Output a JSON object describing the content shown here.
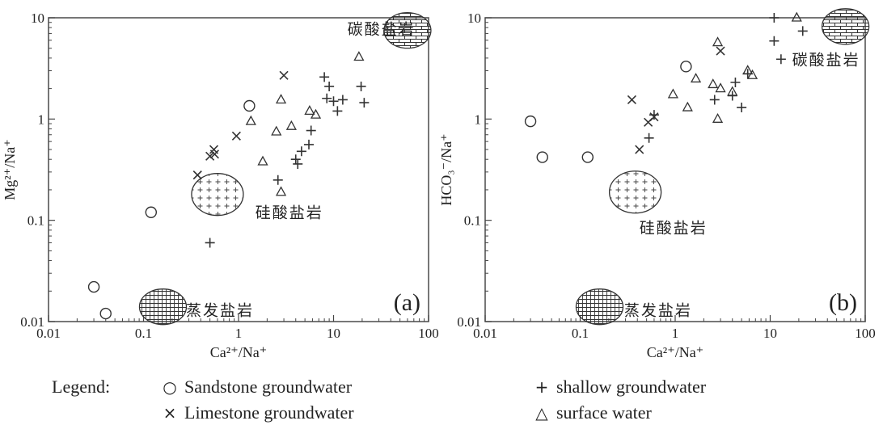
{
  "chart_data": [
    {
      "type": "scatter",
      "panel_label": "(a)",
      "xlabel": "Ca²⁺/Na⁺",
      "ylabel": "Mg²⁺/Na⁺",
      "xscale": "log",
      "yscale": "log",
      "xlim": [
        0.01,
        100
      ],
      "ylim": [
        0.01,
        10
      ],
      "xticks": [
        "0.01",
        "0.1",
        "1",
        "10",
        "100"
      ],
      "yticks": [
        "0.01",
        "0.1",
        "1",
        "10"
      ],
      "grid": false,
      "series": [
        {
          "name": "Sandstone groundwater",
          "marker": "circle",
          "points": [
            [
              0.03,
              0.022
            ],
            [
              0.04,
              0.012
            ],
            [
              0.12,
              0.12
            ],
            [
              1.3,
              1.35
            ]
          ]
        },
        {
          "name": "Limestone groundwater",
          "marker": "x",
          "points": [
            [
              0.37,
              0.28
            ],
            [
              0.5,
              0.43
            ],
            [
              0.55,
              0.5
            ],
            [
              0.56,
              0.45
            ],
            [
              0.95,
              0.68
            ],
            [
              3.0,
              2.7
            ]
          ]
        },
        {
          "name": "shallow groundwater",
          "marker": "plus",
          "points": [
            [
              0.5,
              0.06
            ],
            [
              2.6,
              0.25
            ],
            [
              4.0,
              0.4
            ],
            [
              4.2,
              0.36
            ],
            [
              4.6,
              0.48
            ],
            [
              5.5,
              0.56
            ],
            [
              5.8,
              0.77
            ],
            [
              8.0,
              2.6
            ],
            [
              8.5,
              1.6
            ],
            [
              9.0,
              2.1
            ],
            [
              10.0,
              1.5
            ],
            [
              11.0,
              1.2
            ],
            [
              12.5,
              1.55
            ],
            [
              19.5,
              2.1
            ],
            [
              21.0,
              1.45
            ]
          ]
        },
        {
          "name": "surface water",
          "marker": "triangle",
          "points": [
            [
              1.35,
              0.95
            ],
            [
              1.8,
              0.38
            ],
            [
              2.5,
              0.75
            ],
            [
              2.8,
              0.19
            ],
            [
              2.8,
              1.55
            ],
            [
              3.6,
              0.85
            ],
            [
              5.6,
              1.2
            ],
            [
              6.5,
              1.1
            ],
            [
              18.5,
              4.1
            ]
          ]
        }
      ],
      "regions": [
        {
          "label": "碳酸盐岩",
          "pattern": "brick",
          "at": [
            60,
            7.5
          ],
          "label_at": [
            14,
            7.8
          ]
        },
        {
          "label": "硅酸盐岩",
          "pattern": "plus",
          "at": [
            0.6,
            0.18
          ],
          "label_at": [
            1.5,
            0.12
          ]
        },
        {
          "label": "蒸发盐岩",
          "pattern": "grid",
          "at": [
            0.16,
            0.014
          ],
          "label_at": [
            0.28,
            0.013
          ]
        }
      ]
    },
    {
      "type": "scatter",
      "panel_label": "(b)",
      "xlabel": "Ca²⁺/Na⁺",
      "ylabel": "HCO₃⁻/Na⁺",
      "xscale": "log",
      "yscale": "log",
      "xlim": [
        0.01,
        100
      ],
      "ylim": [
        0.01,
        10
      ],
      "xticks": [
        "0.01",
        "0.1",
        "1",
        "10",
        "100"
      ],
      "yticks": [
        "0.01",
        "0.1",
        "1",
        "10"
      ],
      "grid": false,
      "series": [
        {
          "name": "Sandstone groundwater",
          "marker": "circle",
          "points": [
            [
              0.03,
              0.95
            ],
            [
              0.04,
              0.42
            ],
            [
              0.12,
              0.42
            ],
            [
              1.3,
              3.3
            ]
          ]
        },
        {
          "name": "Limestone groundwater",
          "marker": "x",
          "points": [
            [
              0.35,
              1.55
            ],
            [
              0.42,
              0.5
            ],
            [
              0.52,
              0.93
            ],
            [
              0.6,
              1.05
            ],
            [
              3.0,
              4.7
            ]
          ]
        },
        {
          "name": "shallow groundwater",
          "marker": "plus",
          "points": [
            [
              0.53,
              0.65
            ],
            [
              0.6,
              1.1
            ],
            [
              2.6,
              1.55
            ],
            [
              4.0,
              1.7
            ],
            [
              4.3,
              2.3
            ],
            [
              5.0,
              1.3
            ],
            [
              5.8,
              2.8
            ],
            [
              11.0,
              10.0
            ],
            [
              11.0,
              5.9
            ],
            [
              13.0,
              3.9
            ],
            [
              22.0,
              7.4
            ]
          ]
        },
        {
          "name": "surface water",
          "marker": "triangle",
          "points": [
            [
              0.95,
              1.75
            ],
            [
              1.35,
              1.3
            ],
            [
              1.65,
              2.5
            ],
            [
              2.5,
              2.2
            ],
            [
              2.8,
              5.7
            ],
            [
              2.8,
              1.0
            ],
            [
              3.0,
              2.0
            ],
            [
              4.0,
              1.85
            ],
            [
              5.8,
              3.0
            ],
            [
              6.5,
              2.7
            ],
            [
              19.0,
              10.0
            ]
          ]
        }
      ],
      "regions": [
        {
          "label": "碳酸盐岩",
          "pattern": "brick",
          "at": [
            62,
            8.2
          ],
          "label_at": [
            17,
            3.9
          ]
        },
        {
          "label": "硅酸盐岩",
          "pattern": "plus",
          "at": [
            0.38,
            0.19
          ],
          "label_at": [
            0.42,
            0.085
          ]
        },
        {
          "label": "蒸发盐岩",
          "pattern": "grid",
          "at": [
            0.16,
            0.014
          ],
          "label_at": [
            0.29,
            0.013
          ]
        }
      ]
    }
  ],
  "legend": {
    "title": "Legend:",
    "items": [
      {
        "label": "Sandstone groundwater",
        "symbol": "○"
      },
      {
        "label": "Limestone groundwater",
        "symbol": "×"
      },
      {
        "label": "shallow groundwater",
        "symbol": "+"
      },
      {
        "label": "surface water",
        "symbol": "△"
      }
    ]
  }
}
